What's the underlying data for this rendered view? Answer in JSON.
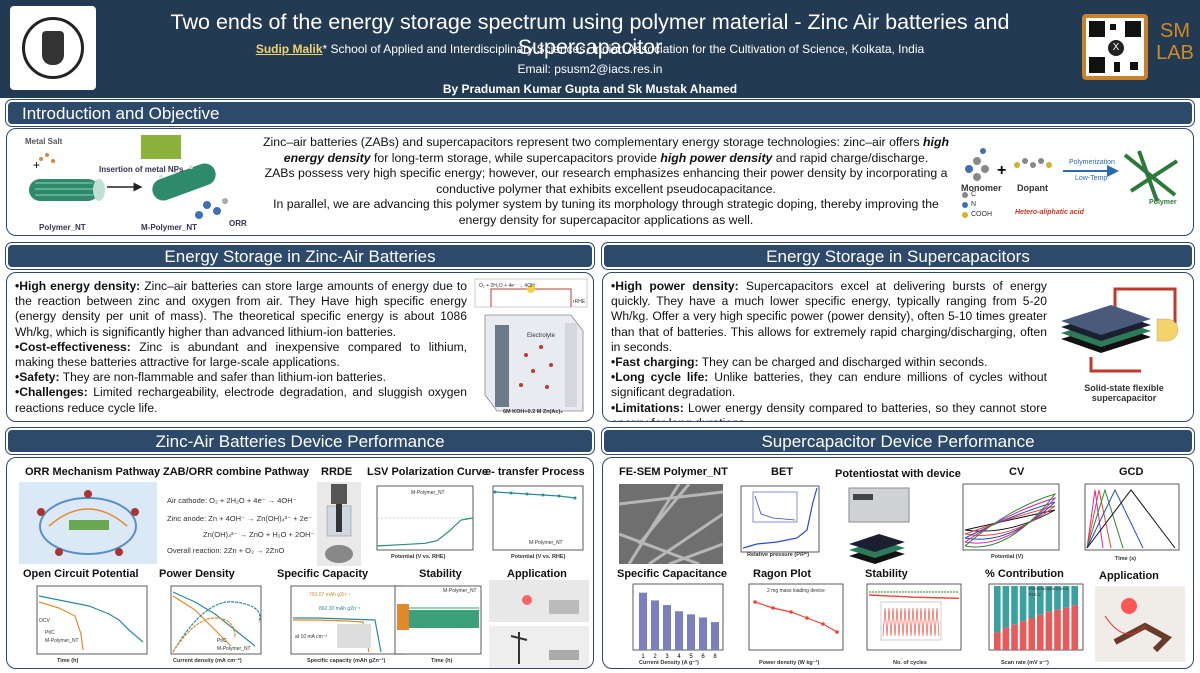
{
  "header": {
    "title": "Two ends of the energy storage spectrum using polymer material - Zinc Air batteries and Supercapacitor",
    "author_name": "Sudip Malik",
    "author_affil": "* School of Applied and Interdisciplinary Sciences, Indian Association for the Cultivation of Science, Kolkata, India",
    "email": "Email: psusm2@iacs.res.in",
    "byline": "By Praduman Kumar Gupta and Sk Mustak Ahamed",
    "lab_logo": "SM LAB"
  },
  "intro": {
    "heading": "Introduction and Objective",
    "p1a": "Zinc–air batteries (ZABs) and supercapacitors represent two complementary energy storage technologies: zinc–air offers ",
    "p1b": "high energy density",
    "p1c": " for long-term storage, while supercapacitors provide ",
    "p1d": "high power density",
    "p1e": " and rapid charge/discharge.",
    "p2": "ZABs possess very high specific energy; however, our research emphasizes enhancing their power density by incorporating a conductive polymer that exhibits excellent pseudocapacitance.",
    "p3": "In parallel, we are advancing this polymer system by tuning its morphology through strategic doping, thereby improving the energy density for supercapacitor applications as well.",
    "fig_left": {
      "metal_salt": "Metal Salt",
      "insertion": "Insertion of metal NPs",
      "polymer_nt": "Polymer_NT",
      "m_polymer_nt": "M-Polymer_NT",
      "orr": "ORR"
    },
    "fig_right": {
      "monomer": "Monomer",
      "dopant": "Dopant",
      "polymerization": "Polymerization",
      "low_temp": "Low-Temp",
      "polymer": "Polymer",
      "hetero": "Hetero-aliphatic acid",
      "c": "C",
      "n": "N",
      "cooh": "COOH"
    }
  },
  "zab": {
    "heading": "Energy Storage in Zinc-Air Batteries",
    "b1_title": "•High energy density:",
    "b1": " Zinc–air batteries can store large amounts of energy due to the reaction between zinc and oxygen from air. They Have high specific energy (energy density per unit of mass). The theoretical specific energy is about 1086 Wh/kg, which is significantly higher than advanced lithium-ion batteries.",
    "b2_title": "•Cost-effectiveness:",
    "b2": " Zinc is abundant and inexpensive compared to lithium, making these batteries attractive for large-scale applications.",
    "b3_title": "•Safety:",
    "b3": " They are non-flammable and safer than lithium-ion batteries.",
    "b4_title": "•Challenges:",
    "b4": " Limited rechargeability, electrode degradation, and sluggish oxygen reactions reduce cycle life.",
    "fig": {
      "electrolyte": "Electrolyte",
      "koh": "6M KOH+0.2 M Zn(Ac)₂",
      "reaction": "O₂ + 2H₂O + 4e⁻ → 4OH⁻",
      "rhe": "rRHE",
      "air_cathode": "Air cathode",
      "zn_anode": "Zn anode"
    }
  },
  "sc": {
    "heading": "Energy Storage in Supercapacitors",
    "b1_title": "•High power density:",
    "b1": " Supercapacitors excel at delivering bursts of energy quickly. They have a much lower specific energy, typically ranging from 5-20 Wh/kg. Offer a very high specific power (power density), often 5-10 times greater than that of batteries. This allows for extremely rapid charging/discharging, often in seconds.",
    "b2_title": "•Fast charging:",
    "b2": " They can be charged and discharged within seconds.",
    "b3_title": "•Long cycle life:",
    "b3": " Unlike batteries, they can endure millions of cycles without significant degradation.",
    "b4_title": "•Limitations:",
    "b4": " Lower energy density compared to batteries, so they cannot store energy for long durations.",
    "fig_caption": "Solid-state flexible supercapacitor"
  },
  "zab_perf": {
    "heading": "Zinc-Air Batteries Device Performance",
    "labels": [
      "ORR Mechanism Pathway",
      "ZAB/ORR combine Pathway",
      "RRDE",
      "LSV Polarization Curve",
      "e- transfer Process",
      "Open Circuit Potential",
      "Power Density",
      "Specific Capacity",
      "Stability",
      "Application"
    ],
    "reactions": [
      "Air cathode:  O₂ + 2H₂O + 4e⁻ → 4OH⁻",
      "Zinc anode:  Zn + 4OH⁻ → Zn(OH)₄²⁻ + 2e⁻",
      "Zn(OH)₄²⁻ → ZnO + H₂O + 2OH⁻",
      "Overall reaction:  2Zn + O₂ → 2ZnO"
    ],
    "axis": {
      "lsv_x": "Potential (V vs. RHE)",
      "lsv_legend": "M-Polymer_NT",
      "et_x": "Potential (V vs. RHE)",
      "et_legend": "M-Polymer_NT",
      "ocp_x": "Time (h)",
      "ocp_y": "Voltage (V vs. Zn²⁺/Zn)",
      "ocp_l1": "Pt/C",
      "ocp_l2": "M-Polymer_NT",
      "ocp_note": "OCV",
      "pd_x": "Current density (mA cm⁻²)",
      "pd_l1": "Pt/C",
      "pd_l2": "M-Polymer_NT",
      "sc_x": "Specific capacity (mAh gZn⁻¹)",
      "sc_note1": "793.07 mAh gZn⁻¹",
      "sc_note2": "862.30 mAh gZn⁻¹",
      "sc_note3": "at 10 mA cm⁻²",
      "st_x": "Time (h)",
      "st_legend": "M-Polymer_NT"
    }
  },
  "sc_perf": {
    "heading": "Supercapacitor Device Performance",
    "labels": [
      "FE-SEM Polymer_NT",
      "BET",
      "Potentiostat with device",
      "CV",
      "GCD",
      "Specific Capacitance",
      "Ragon Plot",
      "Stability",
      "% Contribution",
      "Application"
    ],
    "axis": {
      "bet_x": "Relative pressure (P/P⁰)",
      "bet_y": "N₂ Uptake (cm³ g⁻¹)",
      "cv_x": "Potential (V)",
      "cv_y": "Current (A)",
      "gcd_x": "Time (s)",
      "gcd_y": "Potential (V)",
      "spc_x": "Current Density (A g⁻¹)",
      "spc_y": "Sp. Capacitance (F g⁻¹)",
      "rag_x": "Power density (W kg⁻¹)",
      "rag_y": "Energy density (Wh kg⁻¹)",
      "rag_legend": "2 mg mass loading device",
      "stab_x": "No. of cycles",
      "stab_y": "% of Sp. Capacitance",
      "stab_y2": "% of Coulombic Efficiency",
      "con_x": "Scan rate (mV s⁻¹)",
      "con_y": "% Contribution",
      "con_l1": "Pseudocapacitance",
      "con_l2": "EDLC"
    }
  },
  "chart_data": [
    {
      "type": "bar",
      "title": "Specific Capacitance",
      "xlabel": "Current Density (A g⁻¹)",
      "ylabel": "Sp. Capacitance (F g⁻¹)",
      "categories": [
        "1",
        "2",
        "3",
        "4",
        "5",
        "6",
        "8"
      ],
      "values": [
        185,
        160,
        145,
        125,
        115,
        105,
        90
      ],
      "ylim": [
        0,
        200
      ]
    },
    {
      "type": "bar",
      "title": "% Contribution",
      "xlabel": "Scan rate (mV s⁻¹)",
      "ylabel": "% Contribution",
      "categories": [
        "10",
        "20",
        "30",
        "40",
        "50",
        "60",
        "70",
        "80",
        "90",
        "100"
      ],
      "series": [
        {
          "name": "EDLC",
          "values": [
            28,
            35,
            40,
            45,
            50,
            55,
            60,
            63,
            66,
            70
          ]
        },
        {
          "name": "Pseudocapacitance",
          "values": [
            72,
            65,
            60,
            55,
            50,
            45,
            40,
            37,
            34,
            30
          ]
        }
      ],
      "ylim": [
        0,
        100
      ]
    },
    {
      "type": "line",
      "title": "LSV Polarization Curve",
      "xlabel": "Potential (V vs. RHE)",
      "x": [
        0.2,
        0.4,
        0.6,
        0.7,
        0.8,
        0.9,
        1.0
      ],
      "series": [
        {
          "name": "M-Polymer_NT",
          "values": [
            -4.2,
            -4.0,
            -3.8,
            -3.4,
            -2.0,
            -0.3,
            0.0
          ]
        }
      ],
      "xlim": [
        0.2,
        1.0
      ]
    },
    {
      "type": "line",
      "title": "Stability",
      "xlabel": "No. of cycles",
      "ylabel": "% of Sp. Capacitance",
      "x": [
        0,
        5000,
        10000,
        15000,
        20000
      ],
      "series": [
        {
          "values": [
            100,
            98,
            96,
            95,
            94
          ]
        }
      ],
      "ylim": [
        0,
        120
      ]
    }
  ],
  "colors": {
    "header_bg": "#233a53",
    "section_bar": "#2d4a6b",
    "accent": "#f1d36b",
    "lab_logo": "#d08a2a"
  }
}
